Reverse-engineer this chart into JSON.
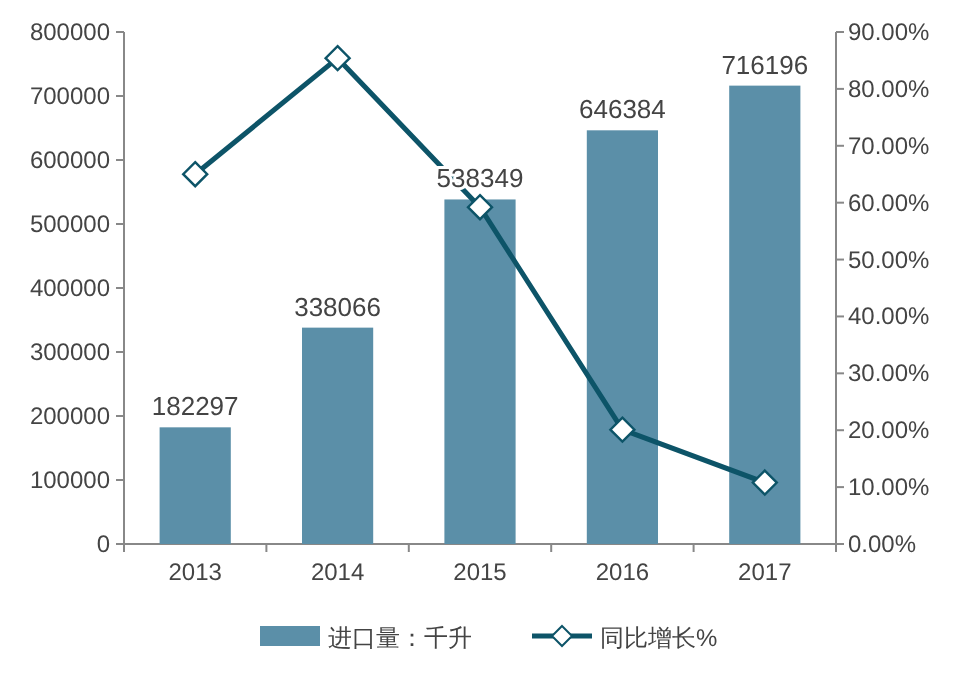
{
  "chart_data": {
    "type": "bar",
    "categories": [
      "2013",
      "2014",
      "2015",
      "2016",
      "2017"
    ],
    "series": [
      {
        "name": "进口量：千升",
        "color": "#5b8fa8",
        "values": [
          182297,
          338066,
          538349,
          646384,
          716196
        ],
        "value_labels": [
          "182297",
          "338066",
          "538349",
          "646384",
          "716196"
        ]
      },
      {
        "name": "同比增长%",
        "type": "line",
        "axis": "y2",
        "color": "#0d5468",
        "values": [
          65.0,
          85.4,
          59.2,
          20.1,
          10.8
        ]
      }
    ],
    "ylim": [
      0,
      800000
    ],
    "yticks": [
      0,
      100000,
      200000,
      300000,
      400000,
      500000,
      600000,
      700000,
      800000
    ],
    "y2lim": [
      0,
      90
    ],
    "y2ticks": [
      {
        "value": 0,
        "label": "0.00%"
      },
      {
        "value": 10,
        "label": "10.00%"
      },
      {
        "value": 20,
        "label": "20.00%"
      },
      {
        "value": 30,
        "label": "30.00%"
      },
      {
        "value": 40,
        "label": "40.00%"
      },
      {
        "value": 50,
        "label": "50.00%"
      },
      {
        "value": 60,
        "label": "60.00%"
      },
      {
        "value": 70,
        "label": "70.00%"
      },
      {
        "value": 80,
        "label": "80.00%"
      },
      {
        "value": 90,
        "label": "90.00%"
      }
    ],
    "marker": "diamond",
    "line_style": "solid",
    "legend": "bottom",
    "grid": false
  }
}
